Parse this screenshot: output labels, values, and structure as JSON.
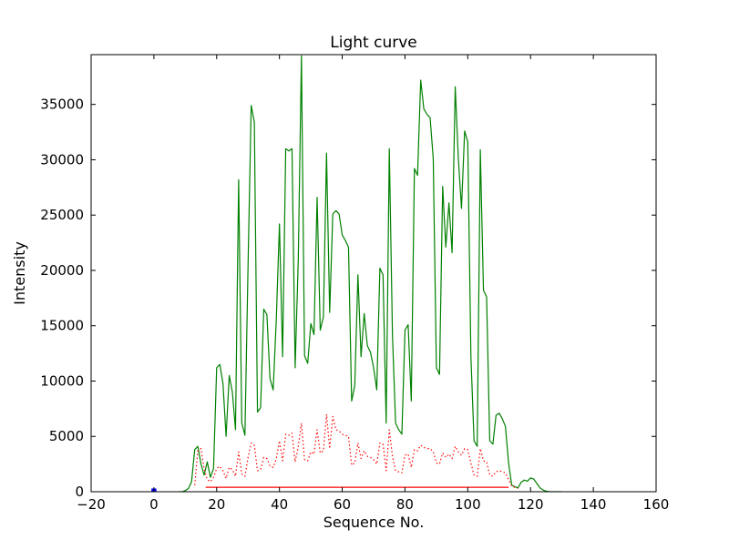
{
  "chart_data": {
    "type": "line",
    "title": "Light curve",
    "xlabel": "Sequence No.",
    "ylabel": "Intensity",
    "xlim": [
      -20,
      160
    ],
    "ylim": [
      0,
      39500
    ],
    "xticks": [
      -20,
      0,
      20,
      40,
      60,
      80,
      100,
      120,
      140,
      160
    ],
    "xtick_labels": [
      "−20",
      "0",
      "20",
      "40",
      "60",
      "80",
      "100",
      "120",
      "140",
      "160"
    ],
    "yticks": [
      0,
      5000,
      10000,
      15000,
      20000,
      25000,
      30000,
      35000
    ],
    "ytick_labels": [
      "0",
      "5000",
      "10000",
      "15000",
      "20000",
      "25000",
      "30000",
      "35000"
    ],
    "grid": false,
    "legend": null,
    "colors": {
      "background": "#ffffff",
      "axis": "#000000"
    },
    "series": [
      {
        "name": "main-intensity-green",
        "color": "#008000",
        "style": "solid",
        "width": 1.2,
        "x": [
          8,
          9,
          10,
          11,
          12,
          13,
          14,
          15,
          16,
          17,
          18,
          19,
          20,
          21,
          22,
          23,
          24,
          25,
          26,
          27,
          28,
          29,
          30,
          31,
          32,
          33,
          34,
          35,
          36,
          37,
          38,
          39,
          40,
          41,
          42,
          43,
          44,
          45,
          46,
          47,
          48,
          49,
          50,
          51,
          52,
          53,
          54,
          55,
          56,
          57,
          58,
          59,
          60,
          61,
          62,
          63,
          64,
          65,
          66,
          67,
          68,
          69,
          70,
          71,
          72,
          73,
          74,
          75,
          76,
          77,
          78,
          79,
          80,
          81,
          82,
          83,
          84,
          85,
          86,
          87,
          88,
          89,
          90,
          91,
          92,
          93,
          94,
          95,
          96,
          97,
          98,
          99,
          100,
          101,
          102,
          103,
          104,
          105,
          106,
          107,
          108,
          109,
          110,
          111,
          112,
          113,
          114,
          115,
          116,
          117,
          118,
          119,
          120,
          121,
          122,
          123,
          124,
          125,
          126,
          127,
          128,
          129,
          130
        ],
        "y": [
          0,
          0,
          100,
          300,
          900,
          3800,
          4100,
          2500,
          1500,
          2700,
          1300,
          2100,
          11200,
          11500,
          9800,
          5000,
          10500,
          9000,
          5600,
          28200,
          6200,
          5100,
          20500,
          34900,
          33400,
          7200,
          7600,
          16500,
          16000,
          10200,
          9200,
          15600,
          24200,
          12200,
          31000,
          30800,
          31000,
          11200,
          21000,
          39400,
          12300,
          11600,
          15200,
          14200,
          26600,
          14600,
          15800,
          30600,
          16200,
          25100,
          25400,
          25100,
          23200,
          22700,
          22100,
          8200,
          9600,
          19600,
          12200,
          16100,
          13200,
          12600,
          11200,
          9200,
          20200,
          19600,
          6200,
          31000,
          14200,
          6200,
          5600,
          5200,
          14600,
          15100,
          8200,
          29200,
          28600,
          37200,
          34600,
          34100,
          33800,
          30100,
          11200,
          10600,
          27600,
          22100,
          26100,
          21600,
          36600,
          30100,
          25600,
          32600,
          31600,
          12200,
          4600,
          4100,
          30900,
          18200,
          17600,
          4600,
          4300,
          6900,
          7100,
          6600,
          5900,
          2600,
          600,
          450,
          350,
          850,
          1050,
          950,
          1250,
          1150,
          750,
          350,
          150,
          50,
          0,
          0,
          0,
          0,
          0
        ]
      },
      {
        "name": "secondary-intensity-red-dotted",
        "color": "#ff0000",
        "style": "dotted",
        "width": 1.2,
        "x": [
          13,
          14,
          15,
          16,
          17,
          18,
          19,
          20,
          21,
          22,
          23,
          24,
          25,
          26,
          27,
          28,
          29,
          30,
          31,
          32,
          33,
          34,
          35,
          36,
          37,
          38,
          39,
          40,
          41,
          42,
          43,
          44,
          45,
          46,
          47,
          48,
          49,
          50,
          51,
          52,
          53,
          54,
          55,
          56,
          57,
          58,
          59,
          60,
          61,
          62,
          63,
          64,
          65,
          66,
          67,
          68,
          69,
          70,
          71,
          72,
          73,
          74,
          75,
          76,
          77,
          78,
          79,
          80,
          81,
          82,
          83,
          84,
          85,
          86,
          87,
          88,
          89,
          90,
          91,
          92,
          93,
          94,
          95,
          96,
          97,
          98,
          99,
          100,
          101,
          102,
          103,
          104,
          105,
          106,
          107,
          108,
          109,
          110,
          111,
          112,
          113,
          114,
          115,
          116
        ],
        "y": [
          600,
          3700,
          3900,
          2100,
          1100,
          900,
          1300,
          2100,
          2300,
          1900,
          1200,
          2200,
          2000,
          1400,
          3600,
          1600,
          1400,
          3100,
          4400,
          4200,
          1900,
          2000,
          3100,
          3000,
          2300,
          2200,
          3000,
          4600,
          2800,
          5200,
          5100,
          5300,
          2700,
          4100,
          6200,
          2900,
          2800,
          3600,
          3400,
          5600,
          3500,
          3700,
          7000,
          3900,
          6800,
          5600,
          5500,
          5200,
          5100,
          5000,
          2400,
          2600,
          4400,
          3000,
          3700,
          3200,
          3100,
          2900,
          2500,
          4400,
          4300,
          1900,
          5600,
          3200,
          1900,
          1800,
          1700,
          3300,
          3400,
          2200,
          3800,
          3700,
          4200,
          4000,
          3900,
          3900,
          3600,
          2600,
          2500,
          3500,
          3100,
          3400,
          3000,
          4100,
          3600,
          3300,
          3900,
          3800,
          2600,
          1500,
          1400,
          3900,
          2800,
          2700,
          1500,
          1400,
          1800,
          1900,
          1800,
          1700,
          1100,
          500,
          400,
          300
        ]
      },
      {
        "name": "baseline-red-solid",
        "color": "#ff0000",
        "style": "solid",
        "width": 1.2,
        "x": [
          16.5,
          113
        ],
        "y": [
          400,
          400
        ]
      },
      {
        "name": "marker-blue",
        "color": "#0000ff",
        "style": "solid",
        "width": 3.5,
        "x": [
          -0.8,
          0.8
        ],
        "y": [
          150,
          150
        ]
      }
    ]
  }
}
